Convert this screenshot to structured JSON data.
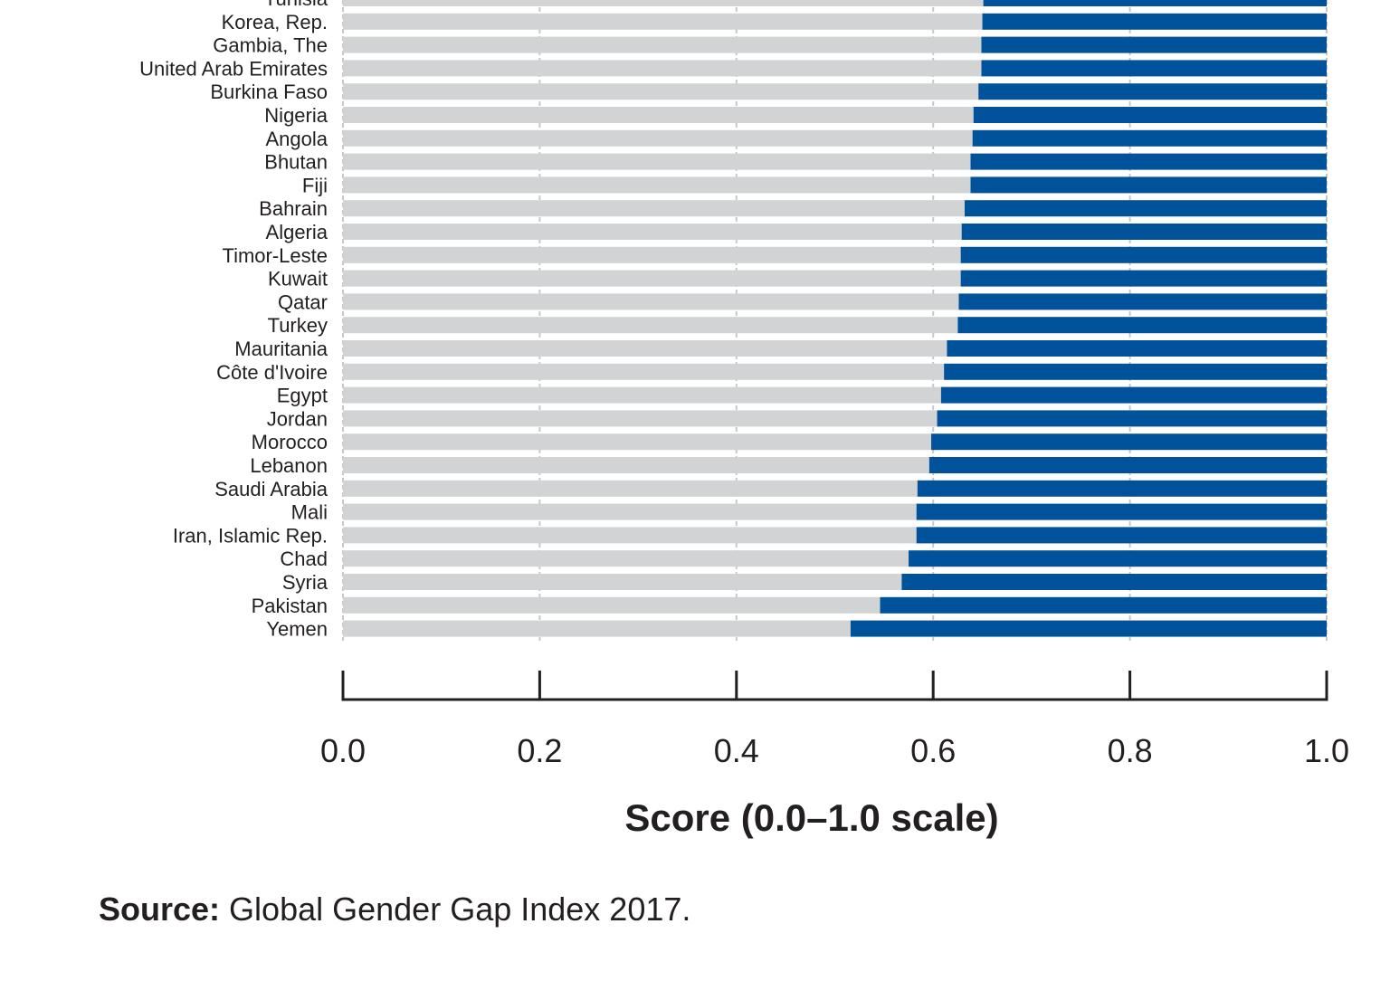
{
  "chart_data": {
    "type": "bar",
    "orientation": "horizontal",
    "stacked": true,
    "categories": [
      "Tunisia",
      "Korea, Rep.",
      "Gambia, The",
      "United Arab Emirates",
      "Burkina Faso",
      "Nigeria",
      "Angola",
      "Bhutan",
      "Fiji",
      "Bahrain",
      "Algeria",
      "Timor-Leste",
      "Kuwait",
      "Qatar",
      "Turkey",
      "Mauritania",
      "Côte d'Ivoire",
      "Egypt",
      "Jordan",
      "Morocco",
      "Lebanon",
      "Saudi Arabia",
      "Mali",
      "Iran, Islamic Rep.",
      "Chad",
      "Syria",
      "Pakistan",
      "Yemen"
    ],
    "series": [
      {
        "values": [
          0.651,
          0.65,
          0.649,
          0.649,
          0.646,
          0.641,
          0.64,
          0.638,
          0.638,
          0.632,
          0.629,
          0.628,
          0.628,
          0.626,
          0.625,
          0.614,
          0.611,
          0.608,
          0.604,
          0.598,
          0.596,
          0.584,
          0.583,
          0.583,
          0.575,
          0.568,
          0.546,
          0.516
        ],
        "color": "#d1d3d4"
      },
      {
        "values": [
          0.349,
          0.35,
          0.351,
          0.351,
          0.354,
          0.359,
          0.36,
          0.362,
          0.362,
          0.368,
          0.371,
          0.372,
          0.372,
          0.374,
          0.375,
          0.386,
          0.389,
          0.392,
          0.396,
          0.402,
          0.404,
          0.416,
          0.417,
          0.417,
          0.425,
          0.432,
          0.454,
          0.484
        ],
        "color": "#00539b"
      }
    ],
    "xlim": [
      0.0,
      1.0
    ],
    "xticks": [
      "0.0",
      "0.2",
      "0.4",
      "0.6",
      "0.8",
      "1.0"
    ],
    "xlabel": "Score (0.0–1.0 scale)",
    "grid": true,
    "legend": "none"
  },
  "source": {
    "label": "Source:",
    "text": " Global Gender Gap Index 2017."
  }
}
